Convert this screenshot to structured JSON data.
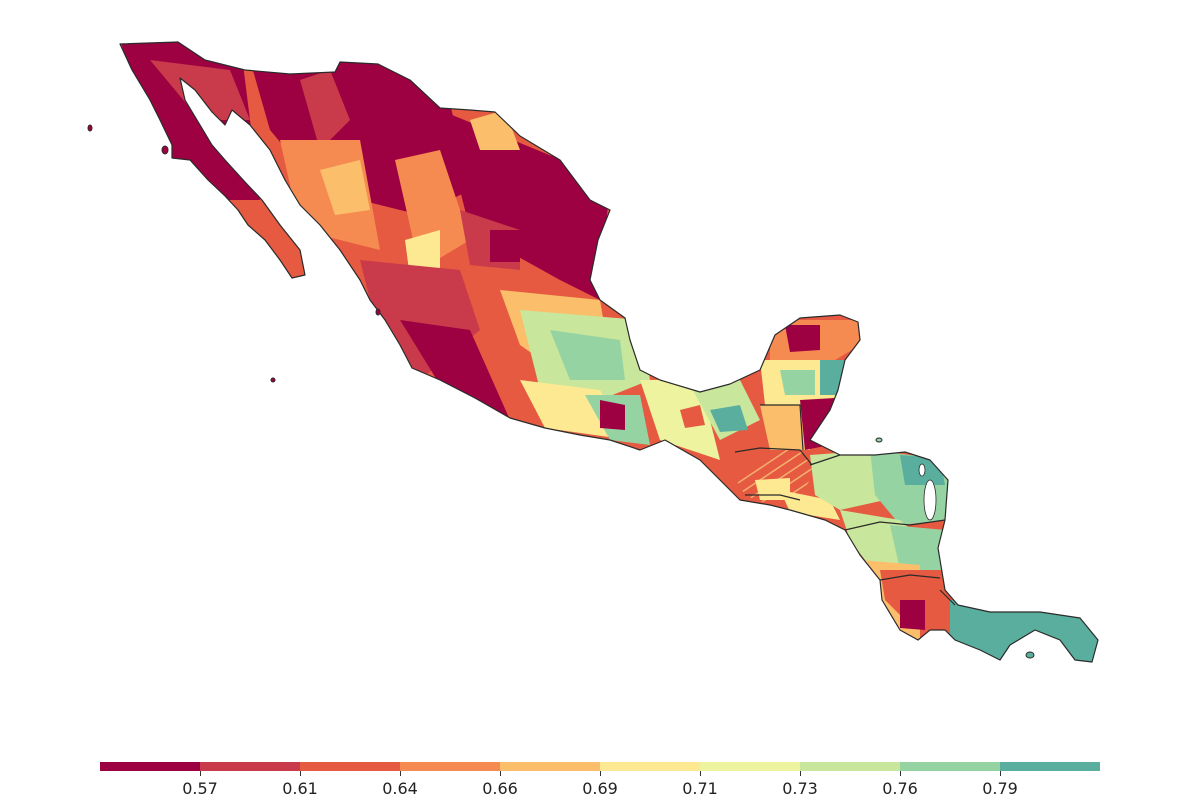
{
  "map": {
    "region": "Mexico and Central America",
    "color_scale": {
      "palette": [
        "#9e0142",
        "#c93b4a",
        "#e55a40",
        "#f68b52",
        "#fbbf6c",
        "#fde992",
        "#eef39f",
        "#c8e79c",
        "#96d3a2",
        "#5aae9d"
      ],
      "tick_labels": [
        "0.57",
        "0.61",
        "0.64",
        "0.66",
        "0.69",
        "0.71",
        "0.73",
        "0.76",
        "0.79"
      ]
    },
    "border_color": "#2b2b2b"
  }
}
